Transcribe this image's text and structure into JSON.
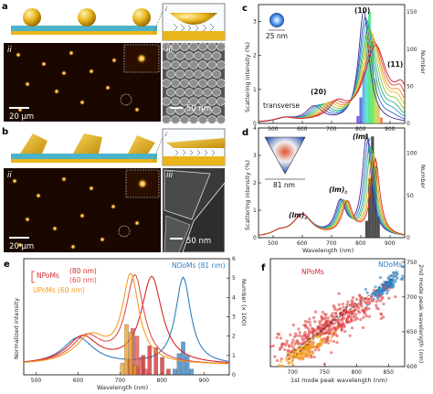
{
  "panels": {
    "a": {
      "label": "a",
      "inset_i": "i",
      "inset_ii": "ii",
      "inset_iii": "iii",
      "scale_ii": "20 μm",
      "scale_iii": "50 nm"
    },
    "b": {
      "label": "b",
      "inset_i": "i",
      "inset_ii": "ii",
      "inset_iii": "iii",
      "scale_ii": "20 μm",
      "scale_iii": "50 nm"
    },
    "c": {
      "label": "c",
      "size_label": "25 nm",
      "mode_10": "(10)",
      "mode_11": "(11)",
      "mode_20": "(20)",
      "transverse": "transverse"
    },
    "d": {
      "label": "d",
      "size_label": "81 nm",
      "mode_a": "(lm)",
      "mode_a_sub": "a",
      "mode_b": "(lm)",
      "mode_b_sub": "b",
      "mode_c": "(lm)",
      "mode_c_sub": "c"
    },
    "e": {
      "label": "e",
      "legend": {
        "ndoms": "NDoMs (81 nm)",
        "npoms_label": "NPoMs",
        "npoms_80": "(80 nm)",
        "npoms_60": "(60 nm)",
        "upoms": "UPoMs (60 nm)"
      }
    },
    "f": {
      "label": "f",
      "npoms": "NPoMs",
      "ndoms": "NDoMs",
      "upoms": "UPoMs"
    }
  },
  "colors": {
    "gold": "#e8b51c",
    "ndoms": "#2f7fc1",
    "npoms": "#d62728",
    "npoms_light": "#e0504f",
    "upoms": "#f39c1e",
    "substrate": "#4ab3c8"
  },
  "chart_data": [
    {
      "panel": "c",
      "type": "line",
      "xlabel": "",
      "ylabel": "Scattering intensity (%)",
      "y2label": "Number",
      "xlim": [
        450,
        950
      ],
      "ylim": [
        0,
        3.5
      ],
      "y2lim": [
        0,
        160
      ],
      "x_ticks": [
        500,
        600,
        700,
        800,
        900
      ],
      "y_ticks": [
        0,
        1,
        2,
        3
      ],
      "y2_ticks": [
        0,
        50,
        100,
        150
      ],
      "series_note": "family of spectra for increasing particle size",
      "main_peaks_x": [
        810,
        815,
        820,
        825,
        830,
        835,
        840,
        845,
        850
      ],
      "main_peaks_y": [
        3.3,
        3.1,
        3.0,
        2.8,
        2.7,
        2.6,
        2.4,
        2.3,
        2.2
      ],
      "histogram_x": [
        790,
        800,
        810,
        820,
        830,
        840,
        850,
        860,
        870
      ],
      "histogram_count": [
        10,
        35,
        70,
        120,
        150,
        110,
        60,
        25,
        8
      ]
    },
    {
      "panel": "d",
      "type": "line",
      "xlabel": "Wavelength (nm)",
      "ylabel": "Scattering intensity (%)",
      "y2label": "Number",
      "xlim": [
        450,
        950
      ],
      "ylim": [
        0,
        4
      ],
      "y2lim": [
        0,
        130
      ],
      "x_ticks": [
        500,
        600,
        700,
        800,
        900
      ],
      "y_ticks": [
        0,
        1,
        2,
        3,
        4
      ],
      "y2_ticks": [
        0,
        50,
        100
      ],
      "main_peaks_x": [
        820,
        825,
        830,
        835,
        840,
        845,
        850
      ],
      "main_peaks_y": [
        3.7,
        3.5,
        3.3,
        3.2,
        3.0,
        2.9,
        2.8
      ],
      "histogram_x": [
        820,
        830,
        840,
        850,
        860
      ],
      "histogram_count": [
        20,
        70,
        120,
        85,
        25
      ]
    },
    {
      "panel": "e",
      "type": "line",
      "xlabel": "Wavelength (nm)",
      "ylabel": "Normalized intensity",
      "y2label": "Number (x 100)",
      "xlim": [
        470,
        960
      ],
      "ylim": [
        0,
        1.2
      ],
      "y2lim": [
        0,
        6
      ],
      "x_ticks": [
        500,
        600,
        700,
        800,
        900
      ],
      "y2_ticks": [
        0,
        1,
        2,
        3,
        4,
        5,
        6
      ],
      "series": [
        {
          "name": "NDoMs (81 nm)",
          "peak_x": 850,
          "histogram_x": [
            830,
            840,
            850,
            860,
            870
          ],
          "histogram_count": [
            0.3,
            1.1,
            1.7,
            1.0,
            0.3
          ]
        },
        {
          "name": "NPoMs (80 nm)",
          "peak_x": 775,
          "histogram_x": [
            740,
            755,
            770,
            785,
            800,
            815
          ],
          "histogram_count": [
            0.4,
            1.0,
            1.5,
            1.4,
            0.9,
            0.3
          ]
        },
        {
          "name": "NPoMs (60 nm)",
          "peak_x": 735,
          "histogram_x": [
            720,
            730,
            740,
            750,
            760
          ],
          "histogram_count": [
            0.8,
            2.4,
            2.0,
            0.9,
            0.3
          ]
        },
        {
          "name": "UPoMs (60 nm)",
          "peak_x": 725,
          "histogram_x": [
            705,
            715,
            725,
            735
          ],
          "histogram_count": [
            0.6,
            2.6,
            2.2,
            0.5
          ]
        }
      ]
    },
    {
      "panel": "f",
      "type": "scatter",
      "xlabel": "1st mode peak wavelength (nm)",
      "ylabel": "2nd mode peak wavelength (nm)",
      "xlim": [
        665,
        875
      ],
      "ylim": [
        600,
        755
      ],
      "x_ticks": [
        700,
        750,
        800,
        850
      ],
      "y_ticks": [
        600,
        650,
        700,
        750
      ],
      "clusters": [
        {
          "name": "NDoMs",
          "center": [
            845,
            715
          ],
          "spread": [
            15,
            12
          ]
        },
        {
          "name": "NPoMs",
          "center": [
            760,
            660
          ],
          "spread": [
            45,
            28
          ]
        },
        {
          "name": "UPoMs",
          "center": [
            720,
            625
          ],
          "spread": [
            18,
            12
          ]
        }
      ]
    }
  ]
}
